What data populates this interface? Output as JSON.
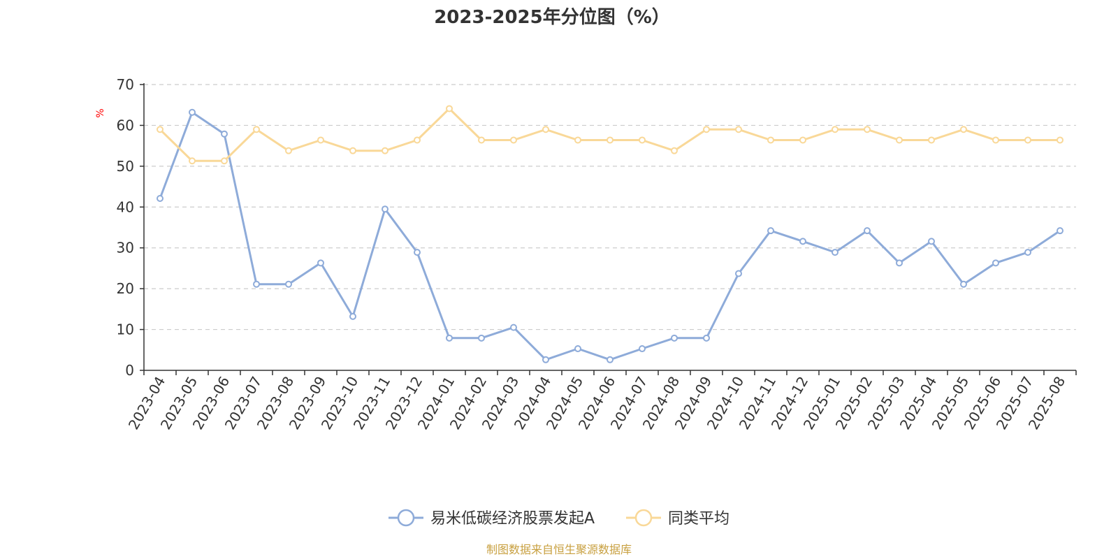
{
  "chart_data": {
    "type": "line",
    "title": "2023-2025年分位图（%）",
    "ylabel": "%",
    "ylim": [
      0,
      70
    ],
    "yticks": [
      0,
      10,
      20,
      30,
      40,
      50,
      60,
      70
    ],
    "grid": true,
    "legend_position": "bottom",
    "x": [
      "2023-04",
      "2023-05",
      "2023-06",
      "2023-07",
      "2023-08",
      "2023-09",
      "2023-10",
      "2023-11",
      "2023-12",
      "2024-01",
      "2024-02",
      "2024-03",
      "2024-04",
      "2024-05",
      "2024-06",
      "2024-07",
      "2024-08",
      "2024-09",
      "2024-10",
      "2024-11",
      "2024-12",
      "2025-01",
      "2025-02",
      "2025-03",
      "2025-04",
      "2025-05",
      "2025-06",
      "2025-07",
      "2025-08"
    ],
    "series": [
      {
        "name": "易米低碳经济股票发起A",
        "color": "#8eabd9",
        "values": [
          42.1,
          63.2,
          57.9,
          21.1,
          21.1,
          26.3,
          13.2,
          39.5,
          28.9,
          7.9,
          7.9,
          10.5,
          2.6,
          5.3,
          2.6,
          5.3,
          7.9,
          7.9,
          23.7,
          34.2,
          31.6,
          28.9,
          34.2,
          26.3,
          31.6,
          21.1,
          26.3,
          28.9,
          34.2
        ]
      },
      {
        "name": "同类平均",
        "color": "#f9d898",
        "values": [
          59.0,
          51.3,
          51.3,
          59.0,
          53.8,
          56.4,
          53.8,
          53.8,
          56.4,
          64.1,
          56.4,
          56.4,
          59.0,
          56.4,
          56.4,
          56.4,
          53.8,
          59.0,
          59.0,
          56.4,
          56.4,
          59.0,
          59.0,
          56.4,
          56.4,
          59.0,
          56.4,
          56.4,
          56.4
        ]
      }
    ]
  },
  "colors": {
    "axis": "#333333",
    "grid": "#cccccc",
    "unit_label": "#ff0000",
    "source": "#c8a040"
  },
  "source_text": "制图数据来自恒生聚源数据库"
}
